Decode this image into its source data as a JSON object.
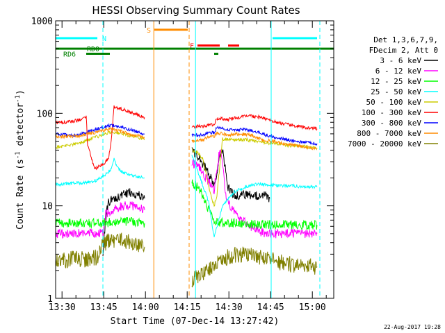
{
  "chart_data": {
    "type": "line",
    "title": "HESSI Observing Summary Count Rates",
    "xlabel": "Start Time (07-Dec-14 13:27:42)",
    "ylabel_main": "Count Rate (s",
    "ylabel_sup1": "-1",
    "ylabel_mid": " detector",
    "ylabel_sup2": "-1",
    "ylabel_end": ")",
    "y_scale": "log",
    "ylim": [
      1,
      1000
    ],
    "xlim_minutes": [
      0,
      100
    ],
    "x_ticks": [
      {
        "minute": 2.3,
        "label": "13:30"
      },
      {
        "minute": 17.3,
        "label": "13:45"
      },
      {
        "minute": 32.3,
        "label": "14:00"
      },
      {
        "minute": 47.3,
        "label": "14:15"
      },
      {
        "minute": 62.3,
        "label": "14:30"
      },
      {
        "minute": 77.3,
        "label": "14:45"
      },
      {
        "minute": 92.3,
        "label": "15:00"
      }
    ],
    "y_ticks": [
      {
        "value": 1,
        "label": "1"
      },
      {
        "value": 10,
        "label": "10"
      },
      {
        "value": 100,
        "label": "100"
      },
      {
        "value": 1000,
        "label": "1000"
      }
    ],
    "legend": {
      "header1": "Det 1,3,6,7,9,",
      "header2": "FDecim 2, Att 0",
      "placement": "right"
    },
    "series": [
      {
        "name": "3 - 6 keV",
        "color": "#000000",
        "segments": [
          [
            [
              17,
              3
            ],
            [
              17.5,
              5
            ],
            [
              18.5,
              9
            ],
            [
              19,
              11
            ],
            [
              21,
              12
            ],
            [
              24,
              13
            ],
            [
              27,
              14
            ],
            [
              30,
              13
            ],
            [
              32,
              12
            ]
          ],
          [
            [
              49,
              40
            ],
            [
              52,
              32
            ],
            [
              55,
              22
            ],
            [
              57,
              17
            ],
            [
              58,
              20
            ],
            [
              59,
              35
            ],
            [
              60,
              40
            ],
            [
              61,
              25
            ],
            [
              62,
              16
            ],
            [
              63,
              14
            ],
            [
              65,
              13
            ],
            [
              70,
              13
            ],
            [
              75,
              13
            ],
            [
              77,
              12
            ]
          ]
        ]
      },
      {
        "name": "6 - 12 keV",
        "color": "#ff00ff",
        "segments": [
          [
            [
              0,
              5
            ],
            [
              6,
              5
            ],
            [
              12,
              5
            ],
            [
              15,
              5
            ],
            [
              17,
              5.2
            ],
            [
              18,
              8
            ],
            [
              20,
              9
            ],
            [
              24,
              10
            ],
            [
              28,
              10
            ],
            [
              32,
              9
            ]
          ],
          [
            [
              49,
              30
            ],
            [
              52,
              25
            ],
            [
              55,
              18
            ],
            [
              57,
              15
            ],
            [
              58,
              25
            ],
            [
              59,
              40
            ],
            [
              60,
              30
            ],
            [
              61,
              13
            ],
            [
              62,
              11
            ],
            [
              65,
              8
            ],
            [
              70,
              6
            ],
            [
              75,
              5
            ],
            [
              80,
              5
            ],
            [
              88,
              5
            ],
            [
              94,
              5
            ]
          ]
        ]
      },
      {
        "name": "12 - 25 keV",
        "color": "#00ff00",
        "segments": [
          [
            [
              0,
              6.5
            ],
            [
              8,
              6.5
            ],
            [
              15,
              6.5
            ],
            [
              19,
              6.6
            ],
            [
              23,
              6.8
            ],
            [
              28,
              6.8
            ],
            [
              32,
              6.5
            ]
          ],
          [
            [
              49,
              18
            ],
            [
              52,
              15
            ],
            [
              55,
              9
            ],
            [
              57,
              6.6
            ],
            [
              60,
              6.6
            ],
            [
              65,
              6.5
            ],
            [
              70,
              6.3
            ],
            [
              80,
              6.3
            ],
            [
              88,
              6.2
            ],
            [
              94,
              6.2
            ]
          ]
        ]
      },
      {
        "name": "25 - 50 keV",
        "color": "#00ffff",
        "segments": [
          [
            [
              0,
              17
            ],
            [
              6,
              17.5
            ],
            [
              12,
              18
            ],
            [
              15,
              19
            ],
            [
              18,
              22
            ],
            [
              20,
              25
            ],
            [
              21,
              33
            ],
            [
              22,
              26
            ],
            [
              24,
              23
            ],
            [
              28,
              21
            ],
            [
              32,
              20
            ]
          ],
          [
            [
              49,
              35
            ],
            [
              52,
              20
            ],
            [
              55,
              11
            ],
            [
              57,
              4.5
            ],
            [
              58,
              6
            ],
            [
              60,
              10
            ],
            [
              64,
              14
            ],
            [
              68,
              16
            ],
            [
              72,
              17
            ],
            [
              76,
              17
            ],
            [
              80,
              16.5
            ],
            [
              85,
              16.5
            ],
            [
              90,
              16
            ],
            [
              94,
              16
            ]
          ]
        ]
      },
      {
        "name": "50 - 100 keV",
        "color": "#cccc00",
        "segments": [
          [
            [
              0,
              43
            ],
            [
              4,
              45
            ],
            [
              8,
              47
            ],
            [
              12,
              52
            ],
            [
              15,
              56
            ],
            [
              18,
              60
            ],
            [
              20,
              63
            ],
            [
              24,
              60
            ],
            [
              28,
              56
            ],
            [
              32,
              53
            ]
          ],
          [
            [
              49,
              40
            ],
            [
              51,
              38
            ],
            [
              53,
              32
            ],
            [
              55,
              16
            ],
            [
              57,
              10
            ],
            [
              58,
              13
            ],
            [
              60,
              53
            ],
            [
              64,
              52
            ],
            [
              68,
              52
            ],
            [
              72,
              50
            ],
            [
              76,
              48
            ],
            [
              80,
              47
            ],
            [
              84,
              45
            ],
            [
              88,
              44
            ],
            [
              92,
              43
            ],
            [
              94,
              42
            ]
          ]
        ]
      },
      {
        "name": "100 - 300 keV",
        "color": "#ff0000",
        "segments": [
          [
            [
              0,
              80
            ],
            [
              4,
              80
            ],
            [
              8,
              84
            ],
            [
              11,
              92
            ],
            [
              11.5,
              46
            ],
            [
              14,
              25
            ],
            [
              17,
              28
            ],
            [
              19,
              33
            ],
            [
              20,
              50
            ],
            [
              21,
              118
            ],
            [
              24,
              110
            ],
            [
              28,
              100
            ],
            [
              32,
              90
            ]
          ],
          [
            [
              49,
              72
            ],
            [
              53,
              72
            ],
            [
              55,
              75
            ],
            [
              57,
              76
            ],
            [
              58,
              88
            ],
            [
              62,
              86
            ],
            [
              66,
              91
            ],
            [
              70,
              94
            ],
            [
              74,
              90
            ],
            [
              78,
              82
            ],
            [
              82,
              77
            ],
            [
              86,
              73
            ],
            [
              90,
              70
            ],
            [
              94,
              68
            ]
          ]
        ]
      },
      {
        "name": "300 - 800 keV",
        "color": "#0000ff",
        "segments": [
          [
            [
              0,
              60
            ],
            [
              4,
              58
            ],
            [
              8,
              58
            ],
            [
              12,
              64
            ],
            [
              15,
              68
            ],
            [
              18,
              72
            ],
            [
              20,
              75
            ],
            [
              24,
              70
            ],
            [
              28,
              65
            ],
            [
              32,
              60
            ]
          ],
          [
            [
              49,
              58
            ],
            [
              53,
              58
            ],
            [
              55,
              62
            ],
            [
              57,
              62
            ],
            [
              58,
              70
            ],
            [
              62,
              67
            ],
            [
              66,
              67
            ],
            [
              70,
              66
            ],
            [
              74,
              60
            ],
            [
              78,
              56
            ],
            [
              82,
              53
            ],
            [
              86,
              50
            ],
            [
              90,
              48
            ],
            [
              94,
              47
            ]
          ]
        ]
      },
      {
        "name": "800 - 7000 keV",
        "color": "#ff8c00",
        "segments": [
          [
            [
              0,
              56
            ],
            [
              4,
              56
            ],
            [
              8,
              57
            ],
            [
              12,
              60
            ],
            [
              15,
              63
            ],
            [
              18,
              66
            ],
            [
              20,
              68
            ],
            [
              24,
              63
            ],
            [
              28,
              58
            ],
            [
              32,
              55
            ]
          ],
          [
            [
              49,
              50
            ],
            [
              53,
              51
            ],
            [
              55,
              56
            ],
            [
              57,
              56
            ],
            [
              58,
              62
            ],
            [
              62,
              58
            ],
            [
              66,
              60
            ],
            [
              70,
              58
            ],
            [
              74,
              52
            ],
            [
              78,
              50
            ],
            [
              82,
              47
            ],
            [
              86,
              45
            ],
            [
              90,
              43
            ],
            [
              94,
              41
            ]
          ]
        ]
      },
      {
        "name": "7000 - 20000 keV",
        "color": "#808000",
        "segments": [
          [
            [
              0,
              2.5
            ],
            [
              4,
              2.6
            ],
            [
              8,
              2.7
            ],
            [
              12,
              2.6
            ],
            [
              15,
              2.8
            ],
            [
              17,
              3.8
            ],
            [
              20,
              4.3
            ],
            [
              24,
              4.2
            ],
            [
              28,
              4.0
            ],
            [
              32,
              3.6
            ]
          ],
          [
            [
              49,
              1.6
            ],
            [
              53,
              1.9
            ],
            [
              57,
              2.3
            ],
            [
              61,
              2.7
            ],
            [
              65,
              3.0
            ],
            [
              70,
              2.9
            ],
            [
              75,
              2.7
            ],
            [
              80,
              2.5
            ],
            [
              85,
              2.3
            ],
            [
              90,
              2.3
            ],
            [
              94,
              2.2
            ]
          ]
        ]
      }
    ],
    "state_bars": [
      {
        "label": "N",
        "color": "#00ffff",
        "y_value": 650,
        "spans": [
          [
            0,
            15
          ]
        ],
        "label_at": 17.5
      },
      {
        "label": "N",
        "color": "#00ffff",
        "y_value": 650,
        "spans": [
          [
            78,
            94
          ]
        ],
        "label_at": null
      },
      {
        "label": "S",
        "color": "#ff8c00",
        "y_value": 800,
        "spans": [
          [
            35.5,
            47.5
          ]
        ],
        "label_at": 33.5
      },
      {
        "label": "F",
        "color": "#ff0000",
        "y_value": 540,
        "spans": [
          [
            51,
            59
          ],
          [
            62,
            66
          ]
        ],
        "label_at": 49
      },
      {
        "label": "RD0",
        "color": "#008000",
        "y_value": 500,
        "spans": [
          [
            0,
            100
          ]
        ],
        "label_at": 13.5
      },
      {
        "label": "RD6",
        "color": "#008000",
        "y_value": 440,
        "spans": [
          [
            11,
            19.5
          ],
          [
            57,
            58.5
          ]
        ],
        "label_at": 5
      }
    ],
    "vlines": [
      {
        "minute": 17,
        "color": "#00ffff",
        "dashed": true
      },
      {
        "minute": 35.3,
        "color": "#ff8c00",
        "dashed": false
      },
      {
        "minute": 48,
        "color": "#ff8c00",
        "dashed": true
      },
      {
        "minute": 50.3,
        "color": "#00ffff",
        "dashed": false
      },
      {
        "minute": 77.5,
        "color": "#00ffff",
        "dashed": false
      },
      {
        "minute": 95,
        "color": "#00ffff",
        "dashed": true
      }
    ]
  },
  "footer": "22-Aug-2017 19:28"
}
